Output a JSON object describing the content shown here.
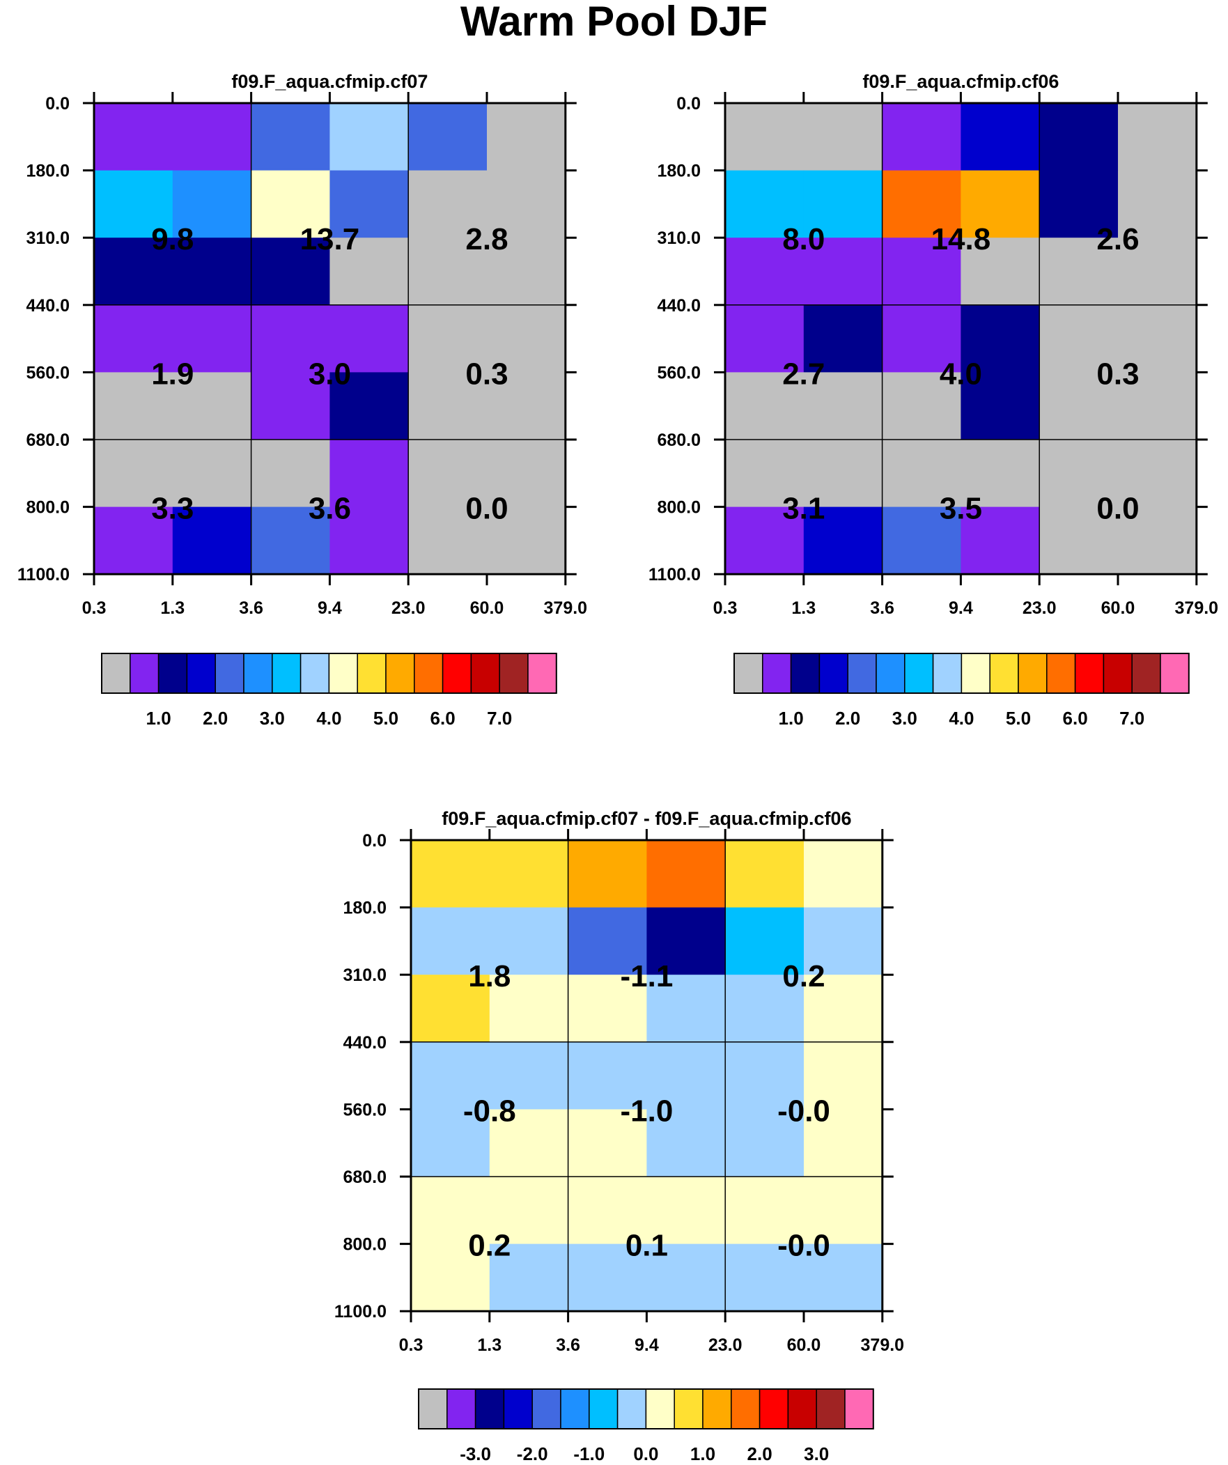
{
  "title": "Warm Pool DJF",
  "y_tick_labels": [
    "0.0",
    "180.0",
    "310.0",
    "440.0",
    "560.0",
    "680.0",
    "800.0",
    "1100.0"
  ],
  "x_tick_labels": [
    "0.3",
    "1.3",
    "3.6",
    "9.4",
    "23.0",
    "60.0",
    "379.0"
  ],
  "palette": {
    "gray": "#c0c0c0",
    "purple": "#8224f0",
    "navy": "#00008c",
    "blue": "#0000cd",
    "royal": "#4169e1",
    "dodger": "#1e90ff",
    "sky": "#00bfff",
    "light": "#a0d2ff",
    "cream": "#ffffc8",
    "gold": "#ffe032",
    "orange": "#ffaa00",
    "dorange": "#ff6e00",
    "red": "#ff0000",
    "dred": "#c80000",
    "brown": "#a02323",
    "pink": "#ff69b4"
  },
  "colorbar_colors": [
    "#c0c0c0",
    "#8224f0",
    "#00008c",
    "#0000cd",
    "#4169e1",
    "#1e90ff",
    "#00bfff",
    "#a0d2ff",
    "#ffffc8",
    "#ffe032",
    "#ffaa00",
    "#ff6e00",
    "#ff0000",
    "#c80000",
    "#a02323",
    "#ff69b4"
  ],
  "chart_data": [
    {
      "type": "heatmap",
      "title": "f09.F_aqua.cfmip.cf07",
      "yticks": [
        "0.0",
        "180.0",
        "310.0",
        "440.0",
        "560.0",
        "680.0",
        "800.0",
        "1100.0"
      ],
      "xticks": [
        "0.3",
        "1.3",
        "3.6",
        "9.4",
        "23.0",
        "60.0",
        "379.0"
      ],
      "cell_colors": [
        [
          "purple",
          "purple",
          "royal",
          "light",
          "royal",
          "gray"
        ],
        [
          "sky",
          "dodger",
          "cream",
          "royal",
          "gray",
          "gray"
        ],
        [
          "navy",
          "navy",
          "navy",
          "gray",
          "gray",
          "gray"
        ],
        [
          "purple",
          "purple",
          "purple",
          "purple",
          "gray",
          "gray"
        ],
        [
          "gray",
          "gray",
          "purple",
          "navy",
          "gray",
          "gray"
        ],
        [
          "gray",
          "gray",
          "gray",
          "purple",
          "gray",
          "gray"
        ],
        [
          "purple",
          "blue",
          "royal",
          "purple",
          "gray",
          "gray"
        ]
      ],
      "grouped_values": [
        [
          "9.8",
          "13.7",
          "2.8"
        ],
        [
          "1.9",
          "3.0",
          "0.3"
        ],
        [
          "3.3",
          "3.6",
          "0.0"
        ]
      ],
      "colorbar_labels": [
        "1.0",
        "2.0",
        "3.0",
        "4.0",
        "5.0",
        "6.0",
        "7.0"
      ]
    },
    {
      "type": "heatmap",
      "title": "f09.F_aqua.cfmip.cf06",
      "yticks": [
        "0.0",
        "180.0",
        "310.0",
        "440.0",
        "560.0",
        "680.0",
        "800.0",
        "1100.0"
      ],
      "xticks": [
        "0.3",
        "1.3",
        "3.6",
        "9.4",
        "23.0",
        "60.0",
        "379.0"
      ],
      "cell_colors": [
        [
          "gray",
          "gray",
          "purple",
          "blue",
          "navy",
          "gray"
        ],
        [
          "sky",
          "sky",
          "dorange",
          "orange",
          "navy",
          "gray"
        ],
        [
          "purple",
          "purple",
          "purple",
          "gray",
          "gray",
          "gray"
        ],
        [
          "purple",
          "navy",
          "purple",
          "navy",
          "gray",
          "gray"
        ],
        [
          "gray",
          "gray",
          "gray",
          "navy",
          "gray",
          "gray"
        ],
        [
          "gray",
          "gray",
          "gray",
          "gray",
          "gray",
          "gray"
        ],
        [
          "purple",
          "blue",
          "royal",
          "purple",
          "gray",
          "gray"
        ]
      ],
      "grouped_values": [
        [
          "8.0",
          "14.8",
          "2.6"
        ],
        [
          "2.7",
          "4.0",
          "0.3"
        ],
        [
          "3.1",
          "3.5",
          "0.0"
        ]
      ],
      "colorbar_labels": [
        "1.0",
        "2.0",
        "3.0",
        "4.0",
        "5.0",
        "6.0",
        "7.0"
      ]
    },
    {
      "type": "heatmap",
      "title": "f09.F_aqua.cfmip.cf07 - f09.F_aqua.cfmip.cf06",
      "yticks": [
        "0.0",
        "180.0",
        "310.0",
        "440.0",
        "560.0",
        "680.0",
        "800.0",
        "1100.0"
      ],
      "xticks": [
        "0.3",
        "1.3",
        "3.6",
        "9.4",
        "23.0",
        "60.0",
        "379.0"
      ],
      "cell_colors": [
        [
          "gold",
          "gold",
          "orange",
          "dorange",
          "gold",
          "cream"
        ],
        [
          "light",
          "light",
          "royal",
          "navy",
          "sky",
          "light"
        ],
        [
          "gold",
          "cream",
          "cream",
          "light",
          "light",
          "cream"
        ],
        [
          "light",
          "light",
          "light",
          "light",
          "light",
          "cream"
        ],
        [
          "light",
          "cream",
          "cream",
          "light",
          "light",
          "cream"
        ],
        [
          "cream",
          "cream",
          "cream",
          "cream",
          "cream",
          "cream"
        ],
        [
          "cream",
          "light",
          "light",
          "light",
          "light",
          "light"
        ]
      ],
      "grouped_values": [
        [
          "1.8",
          "-1.1",
          "0.2"
        ],
        [
          "-0.8",
          "-1.0",
          "-0.0"
        ],
        [
          "0.2",
          "0.1",
          "-0.0"
        ]
      ],
      "colorbar_labels": [
        "-3.0",
        "-2.0",
        "-1.0",
        "0.0",
        "1.0",
        "2.0",
        "3.0"
      ]
    }
  ]
}
